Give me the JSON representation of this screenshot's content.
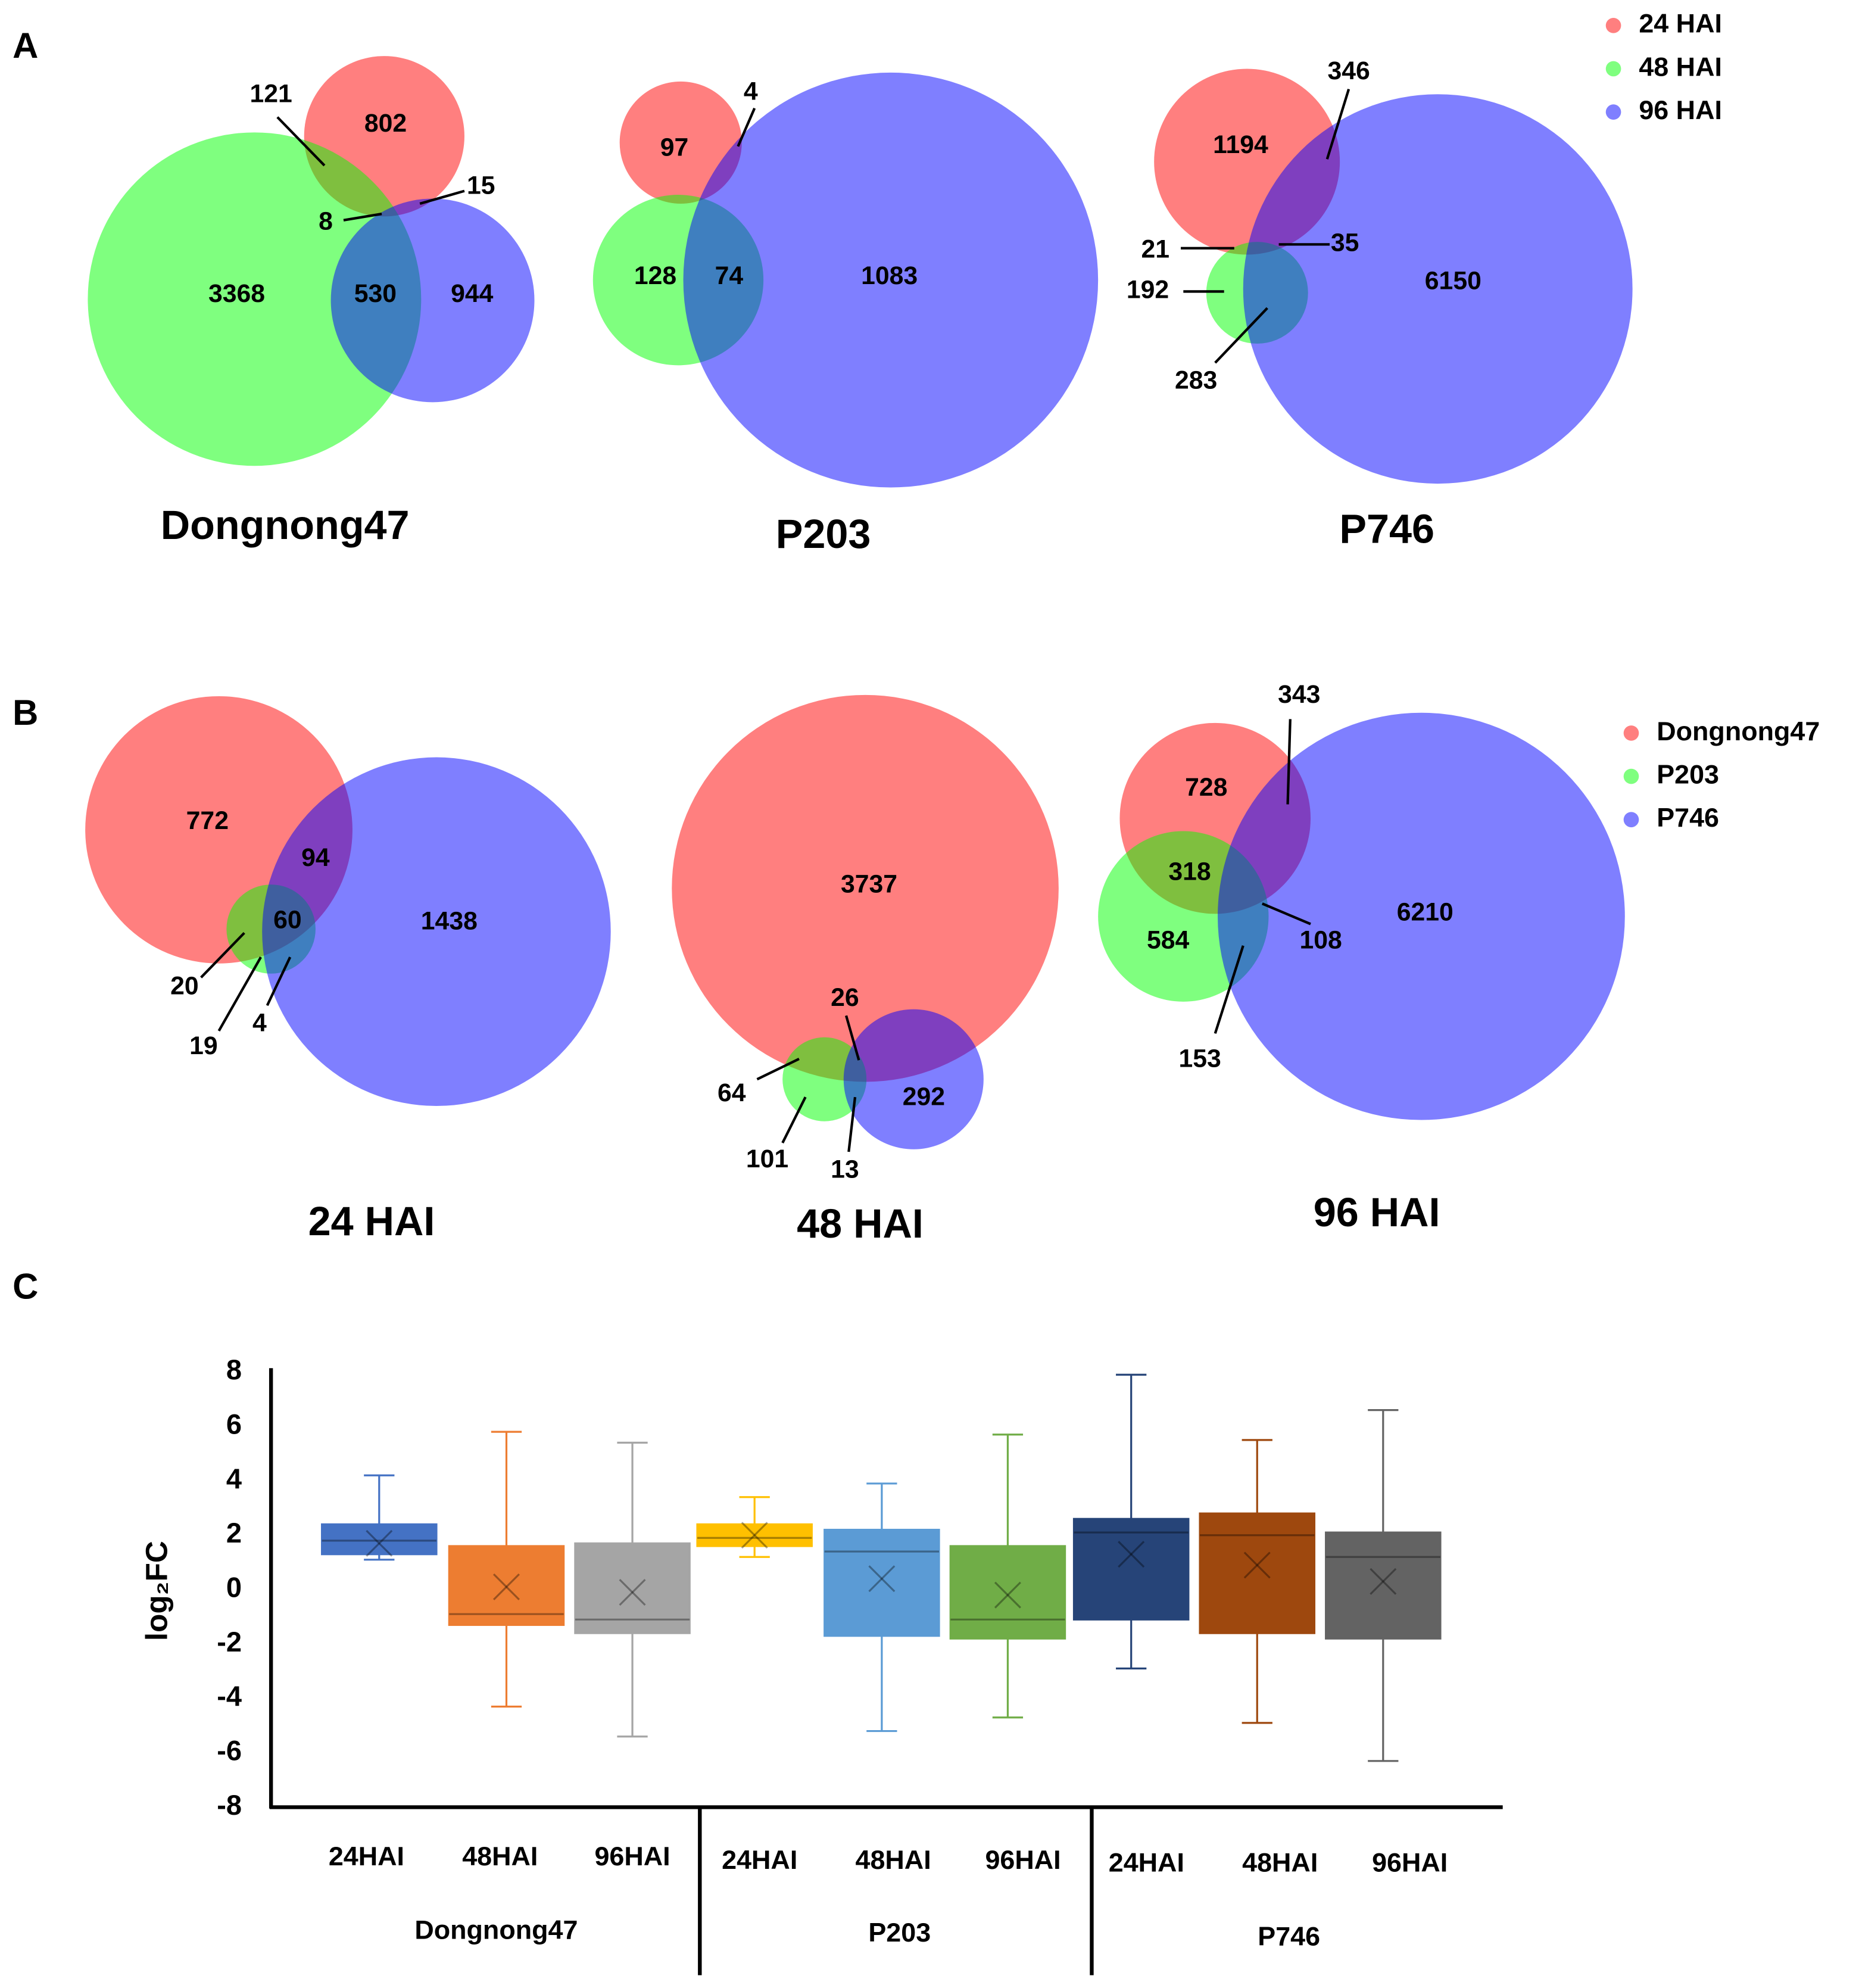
{
  "panels": {
    "A": "A",
    "B": "B",
    "C": "C"
  },
  "colors": {
    "red": "#FF0000",
    "green": "#00FF00",
    "blue": "#0000FF"
  },
  "chart_data": [
    {
      "type": "venn",
      "panel": "A",
      "legend": [
        "24 HAI",
        "48 HAI",
        "96 HAI"
      ],
      "diagrams": [
        {
          "title": "Dongnong47",
          "regions": {
            "only_24": "802",
            "only_48": "3368",
            "only_96": "944",
            "24_48": "121",
            "24_96": "15",
            "48_96": "530",
            "all": "8"
          }
        },
        {
          "title": "P203",
          "regions": {
            "only_24": "97",
            "only_48": "128",
            "only_96": "1083",
            "24_96": "4",
            "48_96": "74"
          }
        },
        {
          "title": "P746",
          "regions": {
            "only_24": "1194",
            "only_48": "192",
            "only_96": "6150",
            "24_48": "21",
            "24_96": "346",
            "48_96": "283",
            "all": "35"
          }
        }
      ]
    },
    {
      "type": "venn",
      "panel": "B",
      "legend": [
        "Dongnong47",
        "P203",
        "P746"
      ],
      "diagrams": [
        {
          "title": "24 HAI",
          "regions": {
            "only_D": "772",
            "only_P203": "19",
            "only_P746": "1438",
            "D_P203": "20",
            "D_P746": "94",
            "P203_P746": "4",
            "all": "60"
          }
        },
        {
          "title": "48 HAI",
          "regions": {
            "only_D": "3737",
            "only_P203": "101",
            "only_P746": "292",
            "D_P203": "64",
            "D_P746": "26",
            "P203_P746": "13"
          }
        },
        {
          "title": "96 HAI",
          "regions": {
            "only_D": "728",
            "only_P203": "584",
            "only_P746": "6210",
            "D_P203": "318",
            "D_P746": "343",
            "P203_P746": "153",
            "all": "108"
          }
        }
      ]
    },
    {
      "type": "box",
      "panel": "C",
      "ylabel": "log₂FC",
      "ylim": [
        -8,
        8
      ],
      "yticks": [
        "8",
        "6",
        "4",
        "2",
        "0",
        "-2",
        "-4",
        "-6",
        "-8"
      ],
      "groups": [
        "Dongnong47",
        "P203",
        "P746"
      ],
      "boxes": [
        {
          "group": "Dongnong47",
          "label": "24HAI",
          "min": 1.1,
          "q1": 1.3,
          "median": 1.8,
          "q3": 2.4,
          "max": 4.2,
          "mean": 1.7,
          "color": "#4472C4"
        },
        {
          "group": "Dongnong47",
          "label": "48HAI",
          "min": -4.3,
          "q1": -1.3,
          "median": -0.9,
          "q3": 1.6,
          "max": 5.8,
          "mean": 0.1,
          "color": "#ED7D31"
        },
        {
          "group": "Dongnong47",
          "label": "96HAI",
          "min": -5.4,
          "q1": -1.6,
          "median": -1.1,
          "q3": 1.7,
          "max": 5.4,
          "mean": -0.1,
          "color": "#A5A5A5"
        },
        {
          "group": "P203",
          "label": "24HAI",
          "min": 1.2,
          "q1": 1.6,
          "median": 1.9,
          "q3": 2.4,
          "max": 3.4,
          "mean": 2.0,
          "color": "#FFC000"
        },
        {
          "group": "P203",
          "label": "48HAI",
          "min": -5.2,
          "q1": -1.7,
          "median": 1.4,
          "q3": 2.2,
          "max": 3.9,
          "mean": 0.4,
          "color": "#5B9BD5"
        },
        {
          "group": "P203",
          "label": "96HAI",
          "min": -4.7,
          "q1": -1.8,
          "median": -1.1,
          "q3": 1.6,
          "max": 5.7,
          "mean": -0.2,
          "color": "#70AD47"
        },
        {
          "group": "P746",
          "label": "24HAI",
          "min": -2.9,
          "q1": -1.1,
          "median": 2.1,
          "q3": 2.6,
          "max": 7.9,
          "mean": 1.3,
          "color": "#264478"
        },
        {
          "group": "P746",
          "label": "48HAI",
          "min": -4.9,
          "q1": -1.6,
          "median": 2.0,
          "q3": 2.8,
          "max": 5.5,
          "mean": 0.9,
          "color": "#9E480E"
        },
        {
          "group": "P746",
          "label": "96HAI",
          "min": -6.3,
          "q1": -1.8,
          "median": 1.2,
          "q3": 2.1,
          "max": 6.6,
          "mean": 0.3,
          "color": "#636363"
        }
      ]
    }
  ]
}
